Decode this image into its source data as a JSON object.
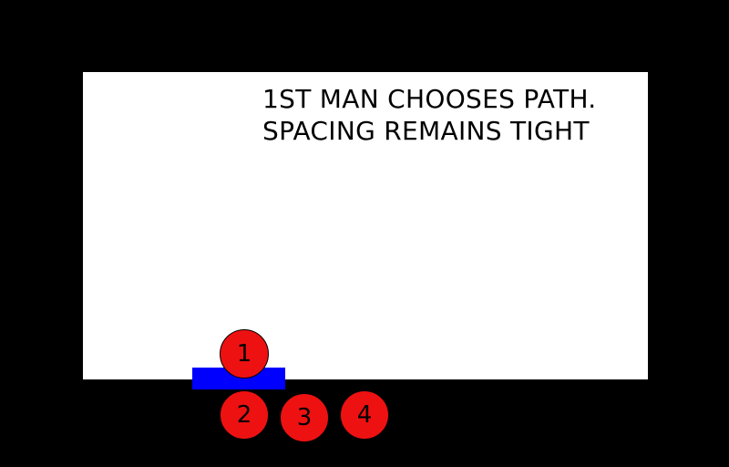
{
  "caption": {
    "line1": "1ST MAN CHOOSES PATH.",
    "line2": "SPACING REMAINS TIGHT"
  },
  "colors": {
    "background": "#000000",
    "room": "#ffffff",
    "door": "#0000ff",
    "man": "#ee1111",
    "text": "#000000"
  },
  "men": [
    {
      "label": "1"
    },
    {
      "label": "2"
    },
    {
      "label": "3"
    },
    {
      "label": "4"
    }
  ]
}
